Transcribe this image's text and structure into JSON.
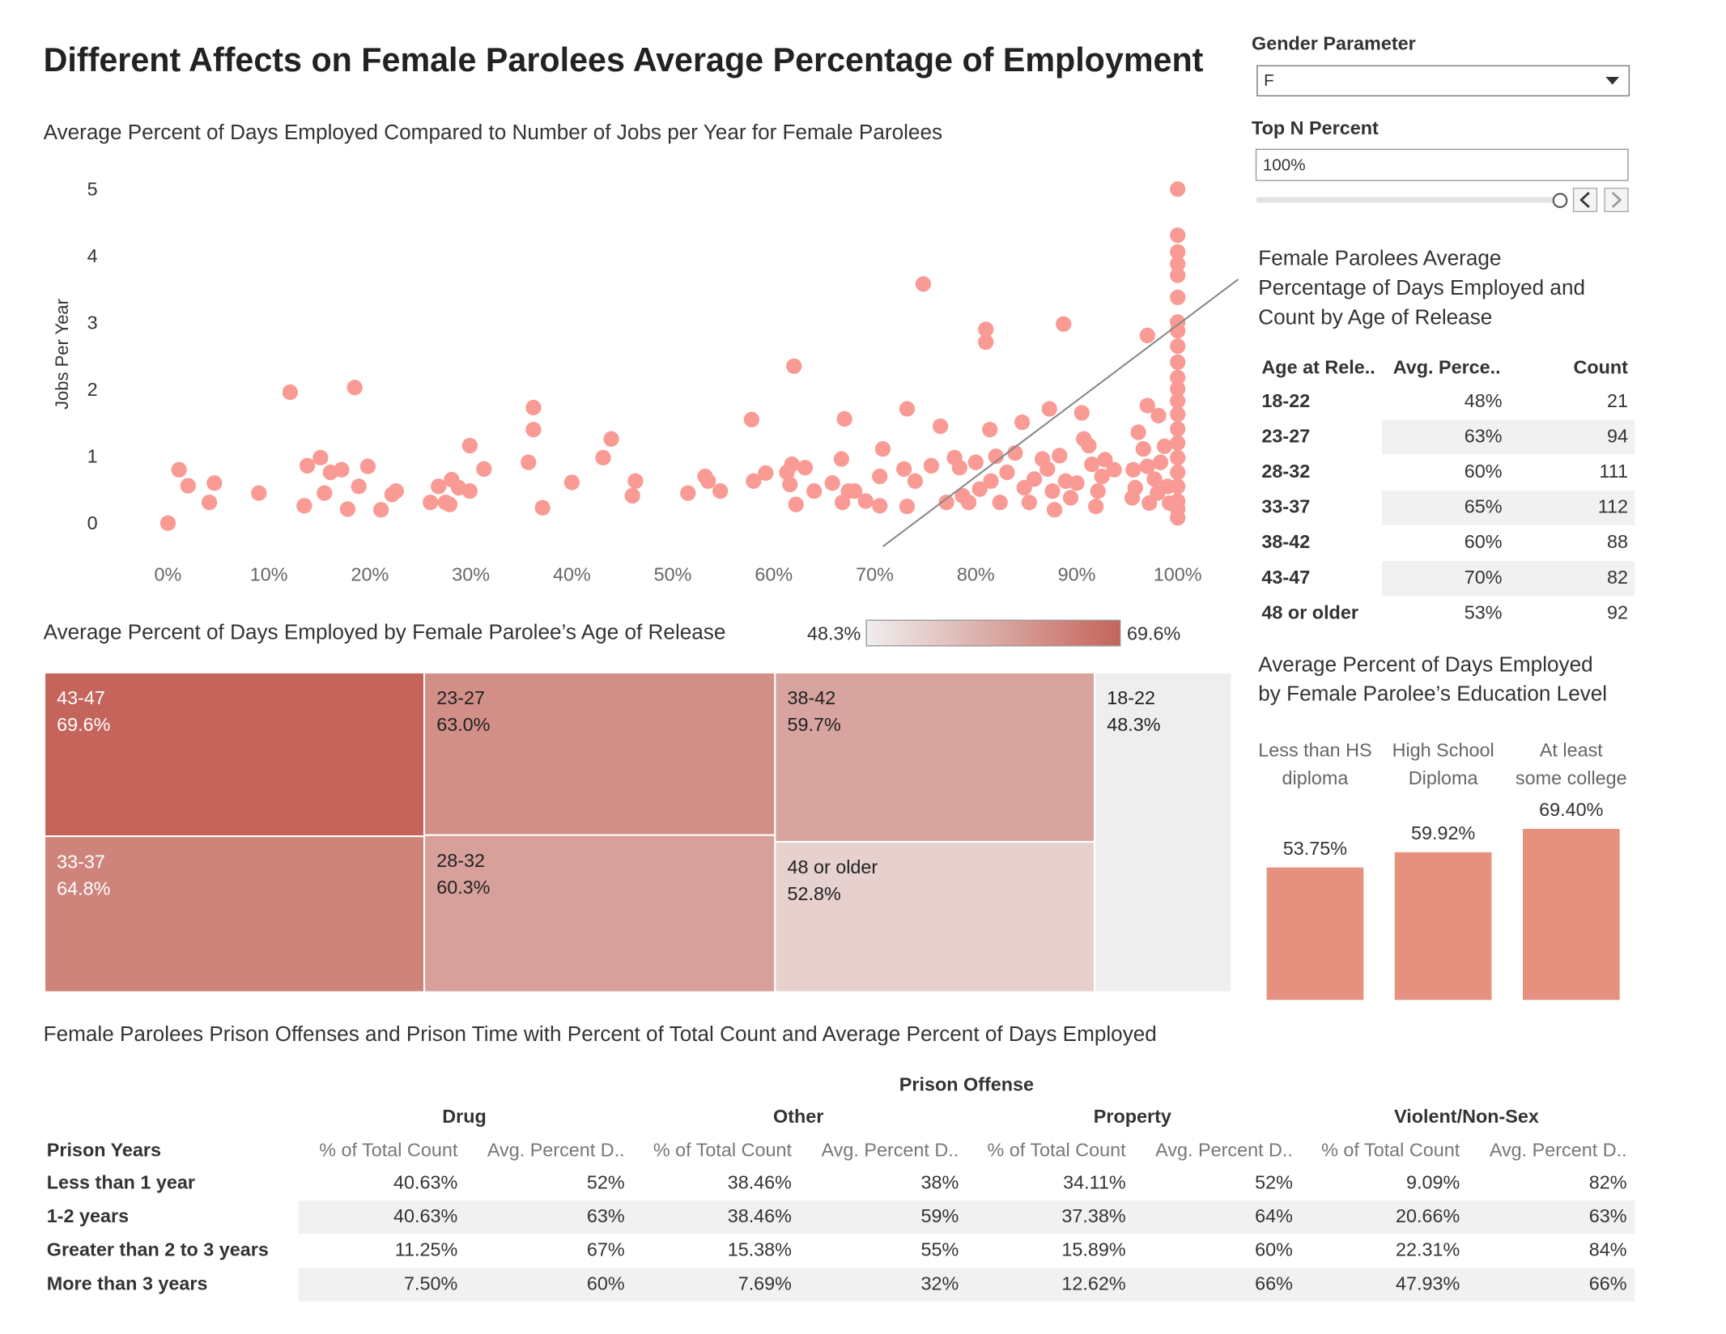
{
  "title": "Different Affects on Female Parolees Average Percentage of Employment",
  "controls": {
    "gender_label": "Gender Parameter",
    "gender_value": "F",
    "topn_label": "Top N Percent",
    "topn_value": "100%"
  },
  "chart_data": [
    {
      "type": "scatter",
      "title": "Average Percent of Days Employed Compared to Number of Jobs per Year for Female Parolees",
      "y_label": "Jobs Per Year",
      "color": "#fa9a94",
      "x": [
        0,
        1.1,
        2,
        4.1,
        4.6,
        9,
        12.1,
        13.5,
        13.8,
        15.1,
        15.5,
        16.1,
        17.2,
        17.8,
        18.5,
        18.9,
        19.8,
        21.1,
        22.2,
        22.6,
        26,
        26.8,
        27.5,
        27.9,
        28.1,
        28.8,
        29.9,
        29.9,
        31.3,
        35.7,
        36.2,
        36.2,
        37.1,
        40,
        43.1,
        43.9,
        46,
        46.3,
        51.5,
        53.2,
        53.5,
        54.7,
        57.8,
        58,
        59.2,
        61.3,
        61.6,
        61.8,
        62,
        62.2,
        63.1,
        64,
        65.8,
        66.7,
        66.8,
        67,
        67.4,
        68,
        69.1,
        70.5,
        70.5,
        70.8,
        72.9,
        73.2,
        73.2,
        74,
        74.8,
        75.6,
        76.5,
        77.1,
        77.9,
        78.4,
        78.7,
        79.3,
        80,
        80.4,
        81,
        81,
        81.4,
        81.5,
        82,
        82.4,
        83.1,
        83.9,
        84.6,
        84.8,
        85.3,
        85.8,
        86.6,
        87.1,
        87.3,
        87.6,
        87.8,
        88.3,
        88.7,
        88.9,
        89.4,
        90,
        90.5,
        90.7,
        91.2,
        91.5,
        91.9,
        92.1,
        92.5,
        92.8,
        93.7,
        95.5,
        95.6,
        95.8,
        96.1,
        96.6,
        97,
        97,
        97,
        97.2,
        97.7,
        98,
        98.1,
        98.3,
        98.7,
        99,
        99.2,
        100,
        100,
        100,
        100,
        100,
        100,
        100,
        100,
        100,
        100,
        100,
        100,
        100,
        100,
        100,
        100,
        100,
        100,
        100,
        100,
        100,
        100
      ],
      "values": [
        0.02,
        0.82,
        0.58,
        0.33,
        0.62,
        0.47,
        1.98,
        0.28,
        0.88,
        1.0,
        0.47,
        0.78,
        0.82,
        0.23,
        2.05,
        0.57,
        0.87,
        0.22,
        0.45,
        0.5,
        0.33,
        0.57,
        0.33,
        0.3,
        0.67,
        0.55,
        0.5,
        1.18,
        0.83,
        0.93,
        1.75,
        1.42,
        0.25,
        0.63,
        1.0,
        1.28,
        0.43,
        0.65,
        0.47,
        0.72,
        0.65,
        0.5,
        1.57,
        0.65,
        0.77,
        0.78,
        0.6,
        0.9,
        2.37,
        0.3,
        0.85,
        0.5,
        0.62,
        0.98,
        0.33,
        1.58,
        0.5,
        0.5,
        0.35,
        0.28,
        0.72,
        1.13,
        0.83,
        0.27,
        1.73,
        0.65,
        3.6,
        0.88,
        1.47,
        0.33,
        1.0,
        0.85,
        0.43,
        0.33,
        0.93,
        0.53,
        2.92,
        2.73,
        1.42,
        0.65,
        1.02,
        0.33,
        0.78,
        1.07,
        1.53,
        0.55,
        0.33,
        0.68,
        0.98,
        0.83,
        1.73,
        0.5,
        0.22,
        1.03,
        3.0,
        0.65,
        0.4,
        0.62,
        1.67,
        1.28,
        1.18,
        0.9,
        0.27,
        0.5,
        0.72,
        0.97,
        0.82,
        0.4,
        0.82,
        0.55,
        1.38,
        1.13,
        2.83,
        1.78,
        0.87,
        0.32,
        0.68,
        0.47,
        1.63,
        0.93,
        1.17,
        0.57,
        0.32,
        5.02,
        4.33,
        4.08,
        3.9,
        3.73,
        3.4,
        3.03,
        2.9,
        2.67,
        2.43,
        2.2,
        2.03,
        1.85,
        1.65,
        1.43,
        1.22,
        1.0,
        0.78,
        0.57,
        0.35,
        0.23,
        0.1
      ],
      "trend_line": {
        "x": [
          70.8,
          106
        ],
        "y": [
          -0.33,
          3.67
        ]
      },
      "xlim": [
        -12,
        106
      ],
      "ylim": [
        -0.7,
        5.3
      ],
      "xticks": [
        {
          "value": 0,
          "label": "0%"
        },
        {
          "value": 10,
          "label": "10%"
        },
        {
          "value": 20,
          "label": "20%"
        },
        {
          "value": 30,
          "label": "30%"
        },
        {
          "value": 40,
          "label": "40%"
        },
        {
          "value": 50,
          "label": "50%"
        },
        {
          "value": 60,
          "label": "60%"
        },
        {
          "value": 70,
          "label": "70%"
        },
        {
          "value": 80,
          "label": "80%"
        },
        {
          "value": 90,
          "label": "90%"
        },
        {
          "value": 100,
          "label": "100%"
        }
      ],
      "yticks": [
        0,
        1,
        2,
        3,
        4,
        5
      ]
    },
    {
      "type": "treemap",
      "title": "Average Percent of Days Employed by Female Parolee’s Age of Release",
      "categories": [
        "43-47",
        "33-37",
        "23-27",
        "28-32",
        "38-42",
        "48 or older",
        "18-22"
      ],
      "values": [
        69.6,
        64.8,
        63.0,
        60.3,
        59.7,
        52.8,
        48.3
      ],
      "value_labels": [
        "69.6%",
        "64.8%",
        "63.0%",
        "60.3%",
        "59.7%",
        "52.8%",
        "48.3%"
      ],
      "colors": [
        "#efeeee",
        "#c4645a"
      ],
      "colorbar_ticks": [
        {
          "value": 48.3,
          "label": "48.3%"
        },
        {
          "value": 69.6,
          "label": "69.6%"
        }
      ]
    },
    {
      "type": "bar",
      "title": [
        "Average Percent of Days Employed",
        "by Female Parolee’s Education Level"
      ],
      "categories": [
        [
          "Less than HS",
          "diploma"
        ],
        [
          "High School",
          "Diploma"
        ],
        [
          "At least",
          "some college"
        ]
      ],
      "values": [
        53.75,
        59.92,
        69.4
      ],
      "value_labels": [
        "53.75%",
        "59.92%",
        "69.40%"
      ],
      "color": "#e6907f",
      "ylim": [
        0,
        75
      ]
    }
  ],
  "age_table": {
    "title": [
      "Female Parolees Average",
      "Percentage of Days Employed and",
      "Count by Age of Release"
    ],
    "header": [
      "Age at Rele..",
      "Avg. Perce..",
      "Count"
    ],
    "rows": [
      [
        "18-22",
        "48%",
        21
      ],
      [
        "23-27",
        "63%",
        94
      ],
      [
        "28-32",
        "60%",
        111
      ],
      [
        "33-37",
        "65%",
        112
      ],
      [
        "38-42",
        "60%",
        88
      ],
      [
        "43-47",
        "70%",
        82
      ],
      [
        "48 or older",
        "53%",
        92
      ]
    ]
  },
  "offense_table": {
    "title": "Female Parolees Prison Offenses and Prison Time with Percent of Total Count and Average Percent of Days Employed",
    "column_header": "Prison Offense",
    "row_header": "Prison Years",
    "groups": [
      "Drug",
      "Other",
      "Property",
      "Violent/Non-Sex"
    ],
    "subheaders": [
      "% of Total Count",
      "Avg. Percent D..",
      "% of Total Count",
      "Avg. Percent D..",
      "% of Total Count",
      "Avg. Percent D..",
      "% of Total Count",
      "Avg. Percent D.."
    ],
    "rows": [
      [
        "Less than 1 year",
        "40.63%",
        "52%",
        "38.46%",
        "38%",
        "34.11%",
        "52%",
        "9.09%",
        "82%"
      ],
      [
        "1-2 years",
        "40.63%",
        "63%",
        "38.46%",
        "59%",
        "37.38%",
        "64%",
        "20.66%",
        "63%"
      ],
      [
        "Greater than 2 to 3 years",
        "11.25%",
        "67%",
        "15.38%",
        "55%",
        "15.89%",
        "60%",
        "22.31%",
        "84%"
      ],
      [
        "More than 3 years",
        "7.50%",
        "60%",
        "7.69%",
        "32%",
        "12.62%",
        "66%",
        "47.93%",
        "66%"
      ]
    ]
  }
}
